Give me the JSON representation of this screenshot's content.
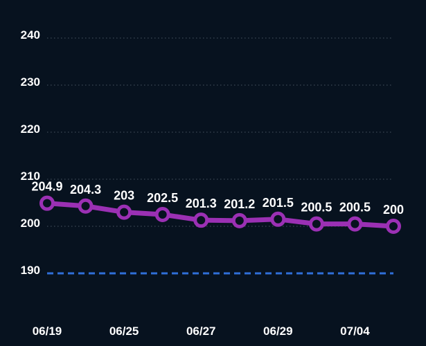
{
  "colors": {
    "background": "#07121f",
    "line": "#9b30b4",
    "marker_fill": "#07121f",
    "grid": "#4a5563",
    "target_line": "#2f6fd8",
    "text": "#ffffff"
  },
  "chart_data": {
    "type": "line",
    "title": "",
    "xlabel": "",
    "ylabel": "",
    "ylim": [
      180,
      240
    ],
    "yticks": [
      190,
      200,
      210,
      220,
      230,
      240
    ],
    "grid": true,
    "grid_style": "dotted",
    "x_tick_labels": [
      {
        "index": 0,
        "label": "06/19"
      },
      {
        "index": 2,
        "label": "06/25"
      },
      {
        "index": 4,
        "label": "06/27"
      },
      {
        "index": 6,
        "label": "06/29"
      },
      {
        "index": 8,
        "label": "07/04"
      }
    ],
    "series": [
      {
        "values": [
          204.9,
          204.3,
          203,
          202.5,
          201.3,
          201.2,
          201.5,
          200.5,
          200.5,
          200
        ],
        "labels": [
          "204.9",
          "204.3",
          "203",
          "202.5",
          "201.3",
          "201.2",
          "201.5",
          "200.5",
          "200.5",
          "200"
        ]
      }
    ],
    "reference_line": {
      "value": 190,
      "style": "dashed"
    }
  }
}
